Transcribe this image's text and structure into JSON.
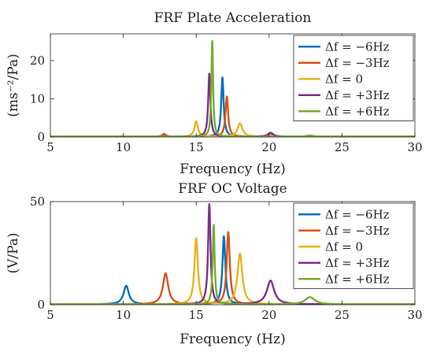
{
  "chart_data": [
    {
      "type": "line",
      "title": "FRF Plate Acceleration",
      "xlabel": "Frequency (Hz)",
      "ylabel": "(ms⁻²/Pa)",
      "xlim": [
        5,
        30
      ],
      "ylim": [
        0,
        27
      ],
      "xticks": [
        "5",
        "10",
        "15",
        "20",
        "25",
        "30"
      ],
      "yticks": [
        "0",
        "10",
        "20"
      ],
      "legend_position": "top-right",
      "grid": false,
      "series": [
        {
          "name": "Δf = −6Hz",
          "color": "#0072BD",
          "baseline": 0.1,
          "peaks": [
            {
              "f": 12.8,
              "a": 0.3,
              "w": 0.15
            },
            {
              "f": 16.8,
              "a": 15.5,
              "w": 0.1
            },
            {
              "f": 20.0,
              "a": 0.5,
              "w": 0.25
            }
          ]
        },
        {
          "name": "Δf = −3Hz",
          "color": "#D95319",
          "baseline": 0.1,
          "peaks": [
            {
              "f": 12.8,
              "a": 0.7,
              "w": 0.15
            },
            {
              "f": 17.1,
              "a": 10.5,
              "w": 0.11
            },
            {
              "f": 20.0,
              "a": 0.4,
              "w": 0.25
            }
          ]
        },
        {
          "name": "Δf = 0",
          "color": "#EDB120",
          "baseline": 0.1,
          "peaks": [
            {
              "f": 15.0,
              "a": 4.0,
              "w": 0.14
            },
            {
              "f": 18.0,
              "a": 3.5,
              "w": 0.2
            },
            {
              "f": 20.0,
              "a": 0.3,
              "w": 0.25
            }
          ]
        },
        {
          "name": "Δf = +3Hz",
          "color": "#7E2F8E",
          "baseline": 0.1,
          "peaks": [
            {
              "f": 15.9,
              "a": 16.5,
              "w": 0.09
            },
            {
              "f": 20.1,
              "a": 1.0,
              "w": 0.22
            }
          ]
        },
        {
          "name": "Δf = +6Hz",
          "color": "#77AC30",
          "baseline": 0.1,
          "peaks": [
            {
              "f": 16.1,
              "a": 25.0,
              "w": 0.07
            },
            {
              "f": 22.8,
              "a": 0.3,
              "w": 0.3
            }
          ]
        }
      ]
    },
    {
      "type": "line",
      "title": "FRF OC Voltage",
      "xlabel": "Frequency (Hz)",
      "ylabel": "(V/Pa)",
      "xlim": [
        5,
        30
      ],
      "ylim": [
        0,
        50
      ],
      "xticks": [
        "5",
        "10",
        "15",
        "20",
        "25",
        "30"
      ],
      "yticks": [
        "0",
        "50"
      ],
      "legend_position": "top-right",
      "grid": false,
      "series": [
        {
          "name": "Δf = −6Hz",
          "color": "#0072BD",
          "baseline": 0.2,
          "peaks": [
            {
              "f": 10.2,
              "a": 9.0,
              "w": 0.22
            },
            {
              "f": 16.9,
              "a": 33.0,
              "w": 0.12
            }
          ]
        },
        {
          "name": "Δf = −3Hz",
          "color": "#D95319",
          "baseline": 0.2,
          "peaks": [
            {
              "f": 12.9,
              "a": 15.0,
              "w": 0.22
            },
            {
              "f": 17.2,
              "a": 35.0,
              "w": 0.13
            }
          ]
        },
        {
          "name": "Δf = 0",
          "color": "#EDB120",
          "baseline": 0.2,
          "peaks": [
            {
              "f": 15.0,
              "a": 32.0,
              "w": 0.14
            },
            {
              "f": 18.0,
              "a": 24.5,
              "w": 0.2
            }
          ]
        },
        {
          "name": "Δf = +3Hz",
          "color": "#7E2F8E",
          "baseline": 0.2,
          "peaks": [
            {
              "f": 15.9,
              "a": 48.5,
              "w": 0.1
            },
            {
              "f": 20.1,
              "a": 11.5,
              "w": 0.3
            }
          ]
        },
        {
          "name": "Δf = +6Hz",
          "color": "#77AC30",
          "baseline": 0.2,
          "peaks": [
            {
              "f": 16.2,
              "a": 38.5,
              "w": 0.08
            },
            {
              "f": 22.8,
              "a": 3.5,
              "w": 0.4
            }
          ]
        }
      ]
    }
  ]
}
